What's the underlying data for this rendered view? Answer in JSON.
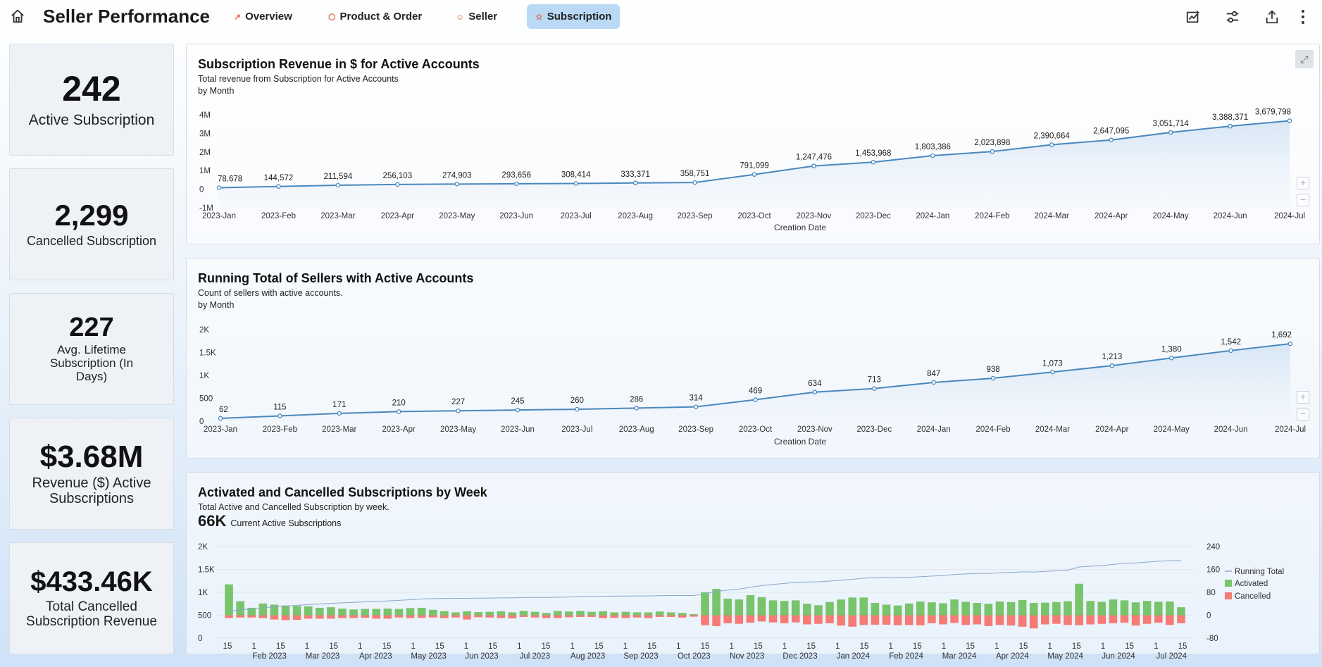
{
  "header": {
    "title": "Seller Performance",
    "tabs": [
      {
        "label": "Overview",
        "icon": "line-chart-icon"
      },
      {
        "label": "Product & Order",
        "icon": "box-icon"
      },
      {
        "label": "Seller",
        "icon": "person-icon"
      },
      {
        "label": "Subscription",
        "icon": "badge-icon",
        "active": true
      }
    ]
  },
  "kpis": [
    {
      "value": "242",
      "label": "Active Subscription"
    },
    {
      "value": "2,299",
      "label": "Cancelled Subscription"
    },
    {
      "value": "227",
      "label": "Avg. Lifetime Subscription (In Days)"
    },
    {
      "value": "$3.68M",
      "label": "Revenue ($) Active Subscriptions"
    },
    {
      "value": "$433.46K",
      "label": "Total Cancelled Subscription Revenue"
    }
  ],
  "panels": {
    "revenue": {
      "title": "Subscription Revenue in $ for Active Accounts",
      "subtitle": "Total revenue from Subscription for Active Accounts",
      "by": "by Month",
      "xlabel": "Creation Date"
    },
    "sellers": {
      "title": "Running Total of Sellers with Active Accounts",
      "subtitle": "Count of sellers with active accounts.",
      "by": "by Month",
      "xlabel": "Creation Date"
    },
    "weekly": {
      "title": "Activated and Cancelled Subscriptions by Week",
      "subtitle": "Total Active and Cancelled Subscription by week.",
      "big_value": "66K",
      "big_label": "Current Active Subscriptions"
    }
  },
  "chart_data": [
    {
      "type": "area",
      "months": [
        "2023-Jan",
        "2023-Feb",
        "2023-Mar",
        "2023-Apr",
        "2023-May",
        "2023-Jun",
        "2023-Jul",
        "2023-Aug",
        "2023-Sep",
        "2023-Oct",
        "2023-Nov",
        "2023-Dec",
        "2024-Jan",
        "2024-Feb",
        "2024-Mar",
        "2024-Apr",
        "2024-May",
        "2024-Jun",
        "2024-Jul"
      ],
      "values": [
        78678,
        144572,
        211594,
        256103,
        274903,
        293656,
        308414,
        333371,
        358751,
        791099,
        1247476,
        1453968,
        1803386,
        2023898,
        2390664,
        2647095,
        3051714,
        3388371,
        3679798
      ],
      "labels": [
        "78,678",
        "144,572",
        "211,594",
        "256,103",
        "274,903",
        "293,656",
        "308,414",
        "333,371",
        "358,751",
        "791,099",
        "1,247,476",
        "1,453,968",
        "1,803,386",
        "2,023,898",
        "2,390,664",
        "2,647,095",
        "3,051,714",
        "3,388,371",
        "3,679,798"
      ],
      "yticks": [
        "4M",
        "3M",
        "2M",
        "1M",
        "0",
        "-1M"
      ],
      "ylim": [
        -1000000,
        4000000
      ]
    },
    {
      "type": "area",
      "months": [
        "2023-Jan",
        "2023-Feb",
        "2023-Mar",
        "2023-Apr",
        "2023-May",
        "2023-Jun",
        "2023-Jul",
        "2023-Aug",
        "2023-Sep",
        "2023-Oct",
        "2023-Nov",
        "2023-Dec",
        "2024-Jan",
        "2024-Feb",
        "2024-Mar",
        "2024-Apr",
        "2024-May",
        "2024-Jun",
        "2024-Jul"
      ],
      "values": [
        62,
        115,
        171,
        210,
        227,
        245,
        260,
        286,
        314,
        469,
        634,
        713,
        847,
        938,
        1073,
        1213,
        1380,
        1542,
        1692
      ],
      "labels": [
        "62",
        "115",
        "171",
        "210",
        "227",
        "245",
        "260",
        "286",
        "314",
        "469",
        "634",
        "713",
        "847",
        "938",
        "1,073",
        "1,213",
        "1,380",
        "1,542",
        "1,692"
      ],
      "yticks": [
        "2K",
        "1.5K",
        "1K",
        "500",
        "0"
      ],
      "ylim": [
        0,
        2000
      ]
    },
    {
      "type": "bar",
      "legend": [
        "Running Total",
        "Activated",
        "Cancelled"
      ],
      "colors": {
        "activated": "#77c46b",
        "cancelled": "#f57b75",
        "running": "#8aa7c8"
      },
      "left_yticks": [
        "2K",
        "1.5K",
        "1K",
        "500",
        "0"
      ],
      "right_yticks": [
        "240",
        "160",
        "80",
        "0",
        "-80"
      ],
      "ylim_right": [
        -80,
        240
      ],
      "activated": [
        108,
        49,
        26,
        41,
        37,
        34,
        32,
        31,
        26,
        28,
        23,
        20,
        22,
        22,
        23,
        22,
        25,
        26,
        19,
        14,
        10,
        14,
        11,
        12,
        14,
        10,
        15,
        12,
        8,
        15,
        13,
        15,
        12,
        14,
        10,
        12,
        10,
        10,
        13,
        10,
        8,
        4,
        80,
        92,
        58,
        55,
        70,
        63,
        52,
        50,
        52,
        40,
        35,
        46,
        55,
        62,
        62,
        43,
        37,
        34,
        41,
        48,
        45,
        42,
        55,
        47,
        43,
        40,
        48,
        46,
        53,
        43,
        44,
        46,
        49,
        110,
        50,
        47,
        55,
        52,
        45,
        50,
        47,
        48,
        28
      ],
      "cancelled": [
        -10,
        -8,
        -8,
        -10,
        -15,
        -17,
        -16,
        -12,
        -12,
        -12,
        -10,
        -10,
        -9,
        -12,
        -12,
        -8,
        -10,
        -9,
        -8,
        -10,
        -8,
        -15,
        -7,
        -8,
        -10,
        -11,
        -6,
        -8,
        -10,
        -10,
        -7,
        -6,
        -6,
        -10,
        -9,
        -10,
        -8,
        -10,
        -6,
        -6,
        -8,
        -5,
        -35,
        -38,
        -28,
        -30,
        -26,
        -22,
        -25,
        -28,
        -25,
        -32,
        -30,
        -28,
        -36,
        -40,
        -34,
        -33,
        -33,
        -35,
        -34,
        -35,
        -28,
        -32,
        -27,
        -34,
        -32,
        -38,
        -34,
        -36,
        -40,
        -46,
        -32,
        -30,
        -34,
        -35,
        -32,
        -30,
        -28,
        -26,
        -36,
        -30,
        -26,
        -34,
        -28
      ],
      "xticks": [
        {
          "day": "15"
        },
        {
          "day": "1",
          "month": "Feb 2023"
        },
        {
          "day": "15"
        },
        {
          "day": "1",
          "month": "Mar 2023"
        },
        {
          "day": "15"
        },
        {
          "day": "1",
          "month": "Apr 2023"
        },
        {
          "day": "15"
        },
        {
          "day": "1",
          "month": "May 2023"
        },
        {
          "day": "15"
        },
        {
          "day": "1",
          "month": "Jun 2023"
        },
        {
          "day": "15"
        },
        {
          "day": "1",
          "month": "Jul 2023"
        },
        {
          "day": "15"
        },
        {
          "day": "1",
          "month": "Aug 2023"
        },
        {
          "day": "15"
        },
        {
          "day": "1",
          "month": "Sep 2023"
        },
        {
          "day": "15"
        },
        {
          "day": "1",
          "month": "Oct 2023"
        },
        {
          "day": "15"
        },
        {
          "day": "1",
          "month": "Nov 2023"
        },
        {
          "day": "15"
        },
        {
          "day": "1",
          "month": "Dec 2023"
        },
        {
          "day": "15"
        },
        {
          "day": "1",
          "month": "Jan 2024"
        },
        {
          "day": "15"
        },
        {
          "day": "1",
          "month": "Feb 2024"
        },
        {
          "day": "15"
        },
        {
          "day": "1",
          "month": "Mar 2024"
        },
        {
          "day": "15"
        },
        {
          "day": "1",
          "month": "Apr 2024"
        },
        {
          "day": "15"
        },
        {
          "day": "1",
          "month": "May 2024"
        },
        {
          "day": "15"
        },
        {
          "day": "1",
          "month": "Jun 2024"
        },
        {
          "day": "15"
        },
        {
          "day": "1",
          "month": "Jul 2024"
        },
        {
          "day": "15"
        }
      ]
    }
  ]
}
